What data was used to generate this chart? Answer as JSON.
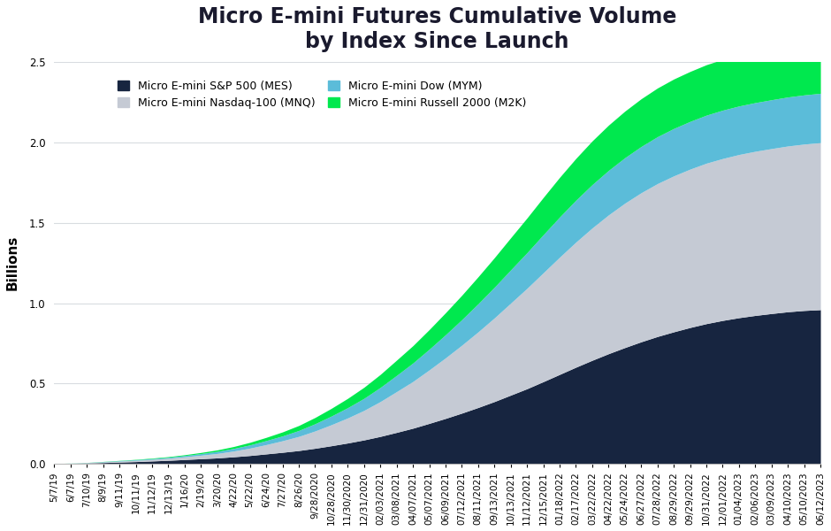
{
  "title": "Micro E-mini Futures Cumulative Volume\nby Index Since Launch",
  "ylabel": "Billions",
  "ylim": [
    0,
    2.5
  ],
  "yticks": [
    0.0,
    0.5,
    1.0,
    1.5,
    2.0,
    2.5
  ],
  "colors": {
    "MES": "#172540",
    "MNQ": "#c5cad4",
    "MYM": "#5bbcd9",
    "M2K": "#00e84e"
  },
  "legend_labels_row1": [
    "Micro E-mini S&P 500 (MES)",
    "Micro E-mini Nasdaq-100 (MNQ)"
  ],
  "legend_labels_row2": [
    "Micro E-mini Dow (MYM)",
    "Micro E-mini Russell 2000 (M2K)"
  ],
  "x_labels": [
    "5/7/19",
    "6/7/19",
    "7/10/19",
    "8/9/19",
    "9/11/19",
    "10/11/19",
    "11/12/19",
    "12/13/19",
    "1/16/20",
    "2/19/20",
    "3/20/20",
    "4/22/20",
    "5/22/20",
    "6/24/20",
    "7/27/20",
    "8/26/20",
    "9/28/2020",
    "10/28/2020",
    "11/30/2020",
    "12/31/2020",
    "02/03/2021",
    "03/08/2021",
    "04/07/2021",
    "05/07/2021",
    "06/09/2021",
    "07/12/2021",
    "08/11/2021",
    "09/13/2021",
    "10/13/2021",
    "11/12/2021",
    "12/15/2021",
    "01/18/2022",
    "02/17/2022",
    "03/22/2022",
    "04/22/2022",
    "05/24/2022",
    "06/27/2022",
    "07/28/2022",
    "08/29/2022",
    "09/29/2022",
    "10/31/2022",
    "12/01/2022",
    "01/04/2023",
    "02/06/2023",
    "03/09/2023",
    "04/10/2023",
    "05/10/2023",
    "06/12/2023"
  ],
  "MES": [
    0.001,
    0.003,
    0.005,
    0.008,
    0.011,
    0.014,
    0.018,
    0.022,
    0.027,
    0.032,
    0.037,
    0.044,
    0.052,
    0.062,
    0.072,
    0.083,
    0.097,
    0.113,
    0.13,
    0.149,
    0.171,
    0.196,
    0.222,
    0.252,
    0.283,
    0.316,
    0.351,
    0.388,
    0.428,
    0.468,
    0.512,
    0.557,
    0.602,
    0.645,
    0.686,
    0.724,
    0.76,
    0.793,
    0.822,
    0.849,
    0.873,
    0.893,
    0.91,
    0.924,
    0.936,
    0.947,
    0.955,
    0.96
  ],
  "MNQ": [
    0.0005,
    0.001,
    0.002,
    0.004,
    0.006,
    0.008,
    0.01,
    0.013,
    0.017,
    0.022,
    0.028,
    0.036,
    0.046,
    0.058,
    0.072,
    0.088,
    0.108,
    0.131,
    0.156,
    0.184,
    0.217,
    0.254,
    0.291,
    0.333,
    0.377,
    0.423,
    0.471,
    0.521,
    0.573,
    0.625,
    0.678,
    0.73,
    0.779,
    0.824,
    0.864,
    0.899,
    0.928,
    0.952,
    0.971,
    0.986,
    0.999,
    1.008,
    1.016,
    1.022,
    1.027,
    1.032,
    1.036,
    1.04
  ],
  "MYM": [
    0.0002,
    0.0005,
    0.001,
    0.002,
    0.003,
    0.004,
    0.005,
    0.006,
    0.008,
    0.01,
    0.013,
    0.016,
    0.02,
    0.025,
    0.03,
    0.037,
    0.045,
    0.054,
    0.064,
    0.075,
    0.088,
    0.101,
    0.115,
    0.129,
    0.144,
    0.159,
    0.175,
    0.191,
    0.207,
    0.222,
    0.237,
    0.25,
    0.261,
    0.27,
    0.277,
    0.283,
    0.288,
    0.292,
    0.295,
    0.297,
    0.299,
    0.301,
    0.302,
    0.303,
    0.304,
    0.305,
    0.306,
    0.307
  ],
  "M2K": [
    0.0001,
    0.0003,
    0.0005,
    0.001,
    0.0015,
    0.002,
    0.003,
    0.004,
    0.005,
    0.007,
    0.009,
    0.012,
    0.016,
    0.02,
    0.025,
    0.031,
    0.039,
    0.048,
    0.058,
    0.069,
    0.081,
    0.095,
    0.108,
    0.122,
    0.137,
    0.152,
    0.168,
    0.184,
    0.2,
    0.216,
    0.232,
    0.247,
    0.26,
    0.272,
    0.282,
    0.29,
    0.297,
    0.303,
    0.308,
    0.311,
    0.314,
    0.316,
    0.318,
    0.32,
    0.321,
    0.322,
    0.323,
    0.324
  ],
  "background_color": "#ffffff",
  "grid_color": "#d8dce0",
  "title_fontsize": 17,
  "label_fontsize": 11,
  "tick_fontsize": 7.5
}
